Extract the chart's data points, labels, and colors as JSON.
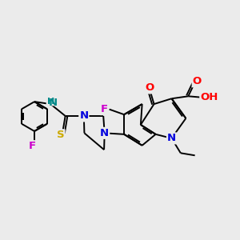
{
  "bg_color": "#ebebeb",
  "bond_color": "#000000",
  "figsize": [
    3.0,
    3.0
  ],
  "dpi": 100,
  "lw": 1.4,
  "lw_inner": 1.1,
  "font_size": 9.5,
  "colors": {
    "O": "#ff0000",
    "N": "#0000dd",
    "NH": "#008888",
    "F": "#cc00cc",
    "S": "#ccaa00",
    "H": "#000000"
  }
}
